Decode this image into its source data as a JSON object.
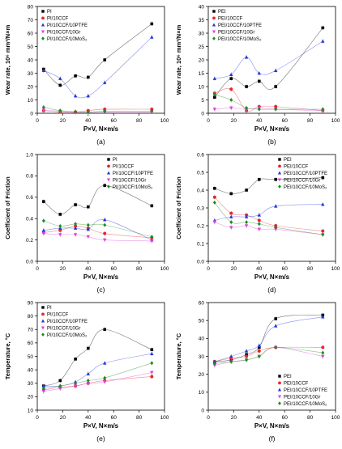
{
  "chart_data": [
    {
      "id": "a",
      "caption": "(a)",
      "type": "scatter",
      "xlabel": "P×V, N×m/s",
      "ylabel": "Wear rate, 10⁶ mm³/N×m",
      "xlim": [
        0,
        100
      ],
      "ylim": [
        0,
        80
      ],
      "xticks": [
        0,
        20,
        40,
        60,
        80,
        100
      ],
      "yticks": [
        0,
        10,
        20,
        30,
        40,
        50,
        60,
        70,
        80
      ],
      "legend_position": "top-left",
      "series": [
        {
          "name": "PI",
          "color": "#000000",
          "marker": "square",
          "x": [
            5,
            18,
            30,
            40,
            53,
            90
          ],
          "y": [
            33,
            21,
            28,
            27,
            40,
            67
          ],
          "fit": "curve"
        },
        {
          "name": "PI/10CCF",
          "color": "#e8262b",
          "marker": "circle",
          "x": [
            5,
            18,
            30,
            40,
            53,
            90
          ],
          "y": [
            2,
            1,
            1,
            2,
            3,
            3
          ],
          "fit": "curve"
        },
        {
          "name": "PI/10CCF/10PTFE",
          "color": "#2433e0",
          "marker": "triangle",
          "x": [
            5,
            18,
            30,
            40,
            53,
            90
          ],
          "y": [
            32,
            26,
            13,
            13,
            23,
            57
          ],
          "fit": "curve"
        },
        {
          "name": "PI/10CCF/10Gr",
          "color": "#e040e0",
          "marker": "triangle-down",
          "x": [
            5,
            18,
            30,
            40,
            53,
            90
          ],
          "y": [
            2.5,
            1.5,
            0.5,
            0.6,
            1,
            1
          ],
          "fit": "curve"
        },
        {
          "name": "PI/10CCF/10MoS₂",
          "color": "#1d8c1d",
          "marker": "diamond",
          "x": [
            5,
            18,
            30,
            40,
            53,
            90
          ],
          "y": [
            4.5,
            2,
            1.2,
            1,
            1.4,
            1.5
          ],
          "fit": "curve"
        }
      ]
    },
    {
      "id": "b",
      "caption": "(b)",
      "type": "scatter",
      "xlabel": "P×V, N×m/s",
      "ylabel": "Wear rate, 10⁶ mm³/N×m",
      "xlim": [
        0,
        100
      ],
      "ylim": [
        0,
        40
      ],
      "xticks": [
        0,
        20,
        40,
        60,
        80,
        100
      ],
      "yticks": [
        0,
        5,
        10,
        15,
        20,
        25,
        30,
        35,
        40
      ],
      "legend_position": "top-left",
      "series": [
        {
          "name": "PEI",
          "color": "#000000",
          "marker": "square",
          "x": [
            5,
            18,
            30,
            40,
            53,
            90
          ],
          "y": [
            6,
            13,
            10,
            12,
            10,
            32
          ],
          "fit": "curve"
        },
        {
          "name": "PEI/10CCF",
          "color": "#e8262b",
          "marker": "circle",
          "x": [
            5,
            18,
            30,
            40,
            53,
            90
          ],
          "y": [
            7.5,
            9,
            1,
            2.5,
            2.5,
            1
          ],
          "fit": "curve"
        },
        {
          "name": "PEI/10CCF/10PTFE",
          "color": "#2433e0",
          "marker": "triangle",
          "x": [
            5,
            18,
            30,
            40,
            53,
            90
          ],
          "y": [
            13,
            14.5,
            21,
            15,
            16,
            27
          ],
          "fit": "curve"
        },
        {
          "name": "PEI/10CCF/10Gr",
          "color": "#e040e0",
          "marker": "triangle-down",
          "x": [
            5,
            18,
            30,
            40,
            53,
            90
          ],
          "y": [
            1.5,
            2,
            1.5,
            2,
            1.5,
            1
          ],
          "fit": "curve"
        },
        {
          "name": "PEI/10CCF/10MoS₂",
          "color": "#1d8c1d",
          "marker": "diamond",
          "x": [
            5,
            18,
            30,
            40,
            53,
            90
          ],
          "y": [
            7,
            5,
            2,
            1.5,
            1.5,
            1.5
          ],
          "fit": "curve"
        }
      ]
    },
    {
      "id": "c",
      "caption": "(c)",
      "type": "scatter",
      "xlabel": "P×V, N×m/s",
      "ylabel": "Coefficient of Friction",
      "xlim": [
        0,
        100
      ],
      "ylim": [
        0,
        1.0
      ],
      "xticks": [
        0,
        20,
        40,
        60,
        80,
        100
      ],
      "yticks": [
        0.0,
        0.2,
        0.4,
        0.6,
        0.8,
        1.0
      ],
      "legend_position": "top-right",
      "series": [
        {
          "name": "PI",
          "color": "#000000",
          "marker": "square",
          "x": [
            5,
            18,
            30,
            40,
            53,
            90
          ],
          "y": [
            0.56,
            0.44,
            0.53,
            0.51,
            0.71,
            0.52
          ],
          "fit": "curve"
        },
        {
          "name": "PI/10CCF",
          "color": "#e8262b",
          "marker": "circle",
          "x": [
            5,
            18,
            30,
            40,
            53,
            90
          ],
          "y": [
            0.27,
            0.29,
            0.33,
            0.31,
            0.26,
            0.22
          ],
          "fit": "curve"
        },
        {
          "name": "PI/10CCF/10PTFE",
          "color": "#2433e0",
          "marker": "triangle",
          "x": [
            5,
            18,
            30,
            40,
            53,
            90
          ],
          "y": [
            0.29,
            0.31,
            0.31,
            0.3,
            0.39,
            0.2
          ],
          "fit": "curve"
        },
        {
          "name": "PI/10CCF/10Gr",
          "color": "#e040e0",
          "marker": "triangle-down",
          "x": [
            5,
            18,
            30,
            40,
            53,
            90
          ],
          "y": [
            0.26,
            0.25,
            0.25,
            0.23,
            0.2,
            0.19
          ],
          "fit": "curve"
        },
        {
          "name": "PI/10CCF/10MoS₂",
          "color": "#1d8c1d",
          "marker": "diamond",
          "x": [
            5,
            18,
            30,
            40,
            53,
            90
          ],
          "y": [
            0.38,
            0.33,
            0.35,
            0.34,
            0.34,
            0.23
          ],
          "fit": "curve"
        }
      ]
    },
    {
      "id": "d",
      "caption": "(d)",
      "type": "scatter",
      "xlabel": "P×V, N×m/s",
      "ylabel": "Coefficient of Friction",
      "xlim": [
        0,
        100
      ],
      "ylim": [
        0.0,
        0.6
      ],
      "xticks": [
        0,
        20,
        40,
        60,
        80,
        100
      ],
      "yticks": [
        0.0,
        0.1,
        0.2,
        0.3,
        0.4,
        0.5,
        0.6
      ],
      "legend_position": "top-right",
      "series": [
        {
          "name": "PEI",
          "color": "#000000",
          "marker": "square",
          "x": [
            5,
            18,
            30,
            40,
            53,
            90
          ],
          "y": [
            0.41,
            0.38,
            0.4,
            0.46,
            0.46,
            0.47
          ],
          "fit": "curve"
        },
        {
          "name": "PEI/10CCF",
          "color": "#e8262b",
          "marker": "circle",
          "x": [
            5,
            18,
            30,
            40,
            53,
            90
          ],
          "y": [
            0.36,
            0.27,
            0.26,
            0.23,
            0.2,
            0.17
          ],
          "fit": "curve"
        },
        {
          "name": "PEI/10CCF/10PTFE",
          "color": "#2433e0",
          "marker": "triangle",
          "x": [
            5,
            18,
            30,
            40,
            53,
            90
          ],
          "y": [
            0.23,
            0.25,
            0.25,
            0.26,
            0.31,
            0.32
          ],
          "fit": "curve"
        },
        {
          "name": "PEI/10CCF/10Gr",
          "color": "#e040e0",
          "marker": "triangle-down",
          "x": [
            5,
            18,
            30,
            40,
            53,
            90
          ],
          "y": [
            0.22,
            0.19,
            0.2,
            0.18,
            0.18,
            0.15
          ],
          "fit": "curve"
        },
        {
          "name": "PEI/10CCF/10MoS₂",
          "color": "#1d8c1d",
          "marker": "diamond",
          "x": [
            5,
            18,
            30,
            40,
            53,
            90
          ],
          "y": [
            0.33,
            0.22,
            0.22,
            0.21,
            0.19,
            0.15
          ],
          "fit": "curve"
        }
      ]
    },
    {
      "id": "e",
      "caption": "(e)",
      "type": "scatter",
      "xlabel": "P×V, N×m/s",
      "ylabel": "Temperature, °C",
      "xlim": [
        0,
        100
      ],
      "ylim": [
        10,
        90
      ],
      "xticks": [
        0,
        20,
        40,
        60,
        80,
        100
      ],
      "yticks": [
        10,
        20,
        30,
        40,
        50,
        60,
        70,
        80,
        90
      ],
      "legend_position": "top-left",
      "series": [
        {
          "name": "PI",
          "color": "#000000",
          "marker": "square",
          "x": [
            5,
            18,
            30,
            40,
            53,
            90
          ],
          "y": [
            28,
            32,
            48,
            56,
            70,
            55
          ],
          "fit": "curve"
        },
        {
          "name": "PI/10CCF",
          "color": "#e8262b",
          "marker": "circle",
          "x": [
            5,
            18,
            30,
            40,
            53,
            90
          ],
          "y": [
            25,
            27,
            28,
            30,
            32,
            35
          ],
          "fit": "curve"
        },
        {
          "name": "PI/10CCF/10PTFE",
          "color": "#2433e0",
          "marker": "triangle",
          "x": [
            5,
            18,
            30,
            40,
            53,
            90
          ],
          "y": [
            28,
            28,
            31,
            37,
            45,
            52
          ],
          "fit": "curve"
        },
        {
          "name": "PI/10CCF/10Gr",
          "color": "#e040e0",
          "marker": "triangle-down",
          "x": [
            5,
            18,
            30,
            40,
            53,
            90
          ],
          "y": [
            24,
            26,
            28,
            30,
            31,
            38
          ],
          "fit": "curve"
        },
        {
          "name": "PI/10CCF/10MoS₂",
          "color": "#1d8c1d",
          "marker": "diamond",
          "x": [
            5,
            18,
            30,
            40,
            53,
            90
          ],
          "y": [
            26,
            28,
            30,
            32,
            34,
            45
          ],
          "fit": "curve"
        }
      ]
    },
    {
      "id": "f",
      "caption": "(f)",
      "type": "scatter",
      "xlabel": "P×V, N×m/s",
      "ylabel": "Temperature, °C",
      "xlim": [
        0,
        100
      ],
      "ylim": [
        0,
        60
      ],
      "xticks": [
        0,
        20,
        40,
        60,
        80,
        100
      ],
      "yticks": [
        0,
        10,
        20,
        30,
        40,
        50,
        60
      ],
      "legend_position": "bottom-right",
      "series": [
        {
          "name": "PEI",
          "color": "#000000",
          "marker": "square",
          "x": [
            5,
            18,
            30,
            40,
            53,
            90
          ],
          "y": [
            27,
            28,
            31,
            35,
            51,
            53
          ],
          "fit": "curve"
        },
        {
          "name": "PEI/10CCF",
          "color": "#e8262b",
          "marker": "circle",
          "x": [
            5,
            18,
            30,
            40,
            53,
            90
          ],
          "y": [
            27,
            29,
            30,
            33,
            35,
            35
          ],
          "fit": "curve"
        },
        {
          "name": "PEI/10CCF/10PTFE",
          "color": "#2433e0",
          "marker": "triangle",
          "x": [
            5,
            18,
            30,
            40,
            53,
            90
          ],
          "y": [
            27,
            30,
            33,
            36,
            47,
            52
          ],
          "fit": "curve"
        },
        {
          "name": "PEI/10CCF/10Gr",
          "color": "#e040e0",
          "marker": "triangle-down",
          "x": [
            5,
            18,
            30,
            40,
            53,
            90
          ],
          "y": [
            25,
            27,
            28,
            30,
            35,
            30
          ],
          "fit": "curve"
        },
        {
          "name": "PEI/10CCF/10MoS₂",
          "color": "#1d8c1d",
          "marker": "diamond",
          "x": [
            5,
            18,
            30,
            40,
            53,
            90
          ],
          "y": [
            26,
            27,
            28,
            30,
            35,
            32
          ],
          "fit": "curve"
        }
      ]
    }
  ]
}
